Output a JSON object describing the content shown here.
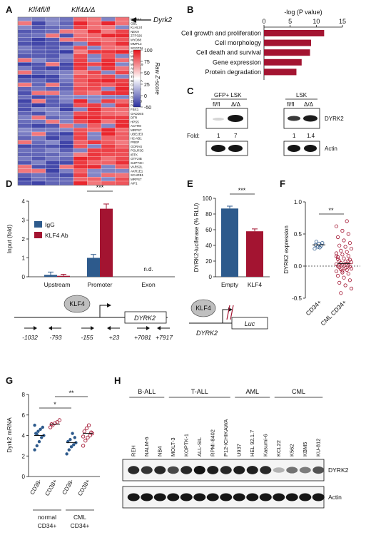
{
  "panel_letters": [
    "A",
    "B",
    "C",
    "D",
    "E",
    "F",
    "G",
    "H"
  ],
  "panelA": {
    "col_headers": [
      "Klf4fl/fl",
      "Klf4Δ/Δ"
    ],
    "highlight_gene": "Dyrk2",
    "genes": [
      "DYRK2",
      "GBL",
      "KLHL24",
      "NEK9",
      "ZFP326",
      "MYD88",
      "MMP13",
      "SCOTIN",
      "EYA3",
      "MX1",
      "RNF4",
      "MRPL19",
      "ABHD5",
      "PFDN4",
      "TIA1",
      "SLC25A",
      "CLIC4",
      "ALKBH",
      "TPK1",
      "GPR30",
      "ZFP553",
      "PIK44",
      "FBX1",
      "GADD45",
      "DTR",
      "HPS5",
      "ACTR8",
      "MRPS7",
      "UBE2E3",
      "H2-AB1",
      "PREP",
      "GORAS",
      "POLR3G",
      "IBTK",
      "GTF2IB",
      "SUPT3H",
      "VARS2L",
      "AKR1E1",
      "SCARB1",
      "MRPS7",
      "AIF1"
    ],
    "colorbar_label": "Raw Z-score",
    "colorbar_ticks": [
      "100",
      "75",
      "50",
      "25",
      "0",
      "-50"
    ],
    "colors": {
      "high": "#e8141c",
      "mid": "#ffffff",
      "low": "#2a2f9e"
    }
  },
  "chart_data": [
    {
      "id": "B",
      "type": "bar",
      "orientation": "horizontal",
      "xlabel": "-log (P value)",
      "xlim": [
        0,
        15
      ],
      "xticks": [
        "0",
        "5",
        "10",
        "15"
      ],
      "categories": [
        "Cell growth and proliferation",
        "Cell morphology",
        "Cell death and survival",
        "Gene expression",
        "Protein degradation"
      ],
      "values": [
        11.5,
        9,
        8.8,
        7.2,
        6.2
      ],
      "color": "#a31431"
    },
    {
      "id": "D",
      "type": "bar",
      "ylabel": "Input (fold)",
      "ylim": [
        0,
        4
      ],
      "yticks": [
        "0",
        "1",
        "2",
        "3",
        "4"
      ],
      "categories": [
        "Upstream",
        "Promoter",
        "Exon"
      ],
      "series": [
        {
          "name": "IgG",
          "values": [
            0.1,
            1.0,
            0
          ],
          "errors": [
            0.15,
            0.18,
            0
          ],
          "color": "#2d5a8c"
        },
        {
          "name": "KLF4 Ab",
          "values": [
            0.05,
            3.6,
            0
          ],
          "errors": [
            0.08,
            0.25,
            0
          ],
          "color": "#a31431"
        }
      ],
      "annotations": [
        "***",
        "n.d."
      ]
    },
    {
      "id": "E",
      "type": "bar",
      "ylabel": "DYRK2-luciferase (% RLU)",
      "ylim": [
        0,
        100
      ],
      "yticks": [
        "0",
        "20",
        "40",
        "60",
        "80",
        "100"
      ],
      "categories": [
        "Empty",
        "KLF4"
      ],
      "values": [
        87,
        58
      ],
      "errors": [
        3,
        3
      ],
      "colors": [
        "#2d5a8c",
        "#a31431"
      ],
      "annotations": [
        "***"
      ]
    },
    {
      "id": "F",
      "type": "scatter",
      "ylabel": "DYRK2 expression",
      "ylim": [
        -0.5,
        1.0
      ],
      "yticks": [
        "-0.5",
        "0.0",
        "0.5",
        "1.0"
      ],
      "categories": [
        "CD34+",
        "CML CD34+"
      ],
      "group_means": [
        0.33,
        0.04
      ],
      "points": [
        [
          0.27,
          0.3,
          0.32,
          0.33,
          0.35,
          0.36,
          0.38,
          0.29
        ],
        [
          0.62,
          0.55,
          0.5,
          0.45,
          0.4,
          0.36,
          0.32,
          0.3,
          0.27,
          0.24,
          0.22,
          0.2,
          0.18,
          0.16,
          0.14,
          0.12,
          0.1,
          0.08,
          0.07,
          0.06,
          0.05,
          0.04,
          0.03,
          0.02,
          0.01,
          0.0,
          0.0,
          -0.01,
          -0.02,
          -0.03,
          -0.04,
          -0.05,
          -0.06,
          -0.08,
          -0.1,
          -0.12,
          -0.15,
          -0.18,
          -0.22,
          -0.26,
          -0.3,
          -0.35,
          -0.42,
          0.7,
          0.15,
          -0.07,
          0.08,
          0.11
        ]
      ],
      "colors": [
        "#2d5a8c",
        "#a31431"
      ],
      "annotations": [
        "**"
      ]
    },
    {
      "id": "G",
      "type": "scatter",
      "ylabel": "Dyrk2 mRNA",
      "ylim": [
        0,
        8
      ],
      "yticks": [
        "0",
        "2",
        "4",
        "6",
        "8"
      ],
      "categories": [
        "CD38-",
        "CD38+",
        "CD38-",
        "CD38+"
      ],
      "group_labels": [
        "normal CD34+",
        "CML CD34+"
      ],
      "group_means": [
        4.0,
        5.1,
        3.3,
        4.2
      ],
      "points": [
        [
          2.6,
          3.0,
          3.4,
          3.8,
          4.0,
          4.2,
          4.4,
          4.6,
          4.8,
          5.0,
          4.1
        ],
        [
          4.8,
          5.0,
          5.2,
          5.3,
          5.5,
          5.1
        ],
        [
          2.2,
          2.6,
          2.9,
          3.1,
          3.3,
          3.4,
          3.6,
          4.2,
          3.8
        ],
        [
          3.0,
          3.5,
          3.8,
          4.0,
          4.2,
          4.4,
          4.7,
          5.0,
          4.3,
          3.9
        ]
      ],
      "colors": [
        "#2d5a8c",
        "#a31431",
        "#2d5a8c",
        "#a31431"
      ],
      "annotations": [
        "*",
        "**"
      ]
    }
  ],
  "panelC": {
    "left_header": "GFP+ LSK",
    "right_header": "LSK",
    "lane_labels": [
      "fl/fl",
      "Δ/Δ"
    ],
    "fold_label": "Fold:",
    "left_fold": [
      "1",
      "7"
    ],
    "right_fold": [
      "1",
      "1.4"
    ],
    "row_labels": [
      "DYRK2",
      "Actin"
    ]
  },
  "panelD_schematic": {
    "factor": "KLF4",
    "gene": "DYRK2",
    "positions": [
      "-1032",
      "-793",
      "-155",
      "+23",
      "+7081",
      "+7917"
    ]
  },
  "panelE_schematic": {
    "factor": "KLF4",
    "gene": "DYRK2",
    "reporter": "Luc"
  },
  "panelH": {
    "groups": [
      "B-ALL",
      "T-ALL",
      "AML",
      "CML"
    ],
    "lanes": [
      "REH",
      "NALM-6",
      "NB4",
      "MOLT-3",
      "KOPTK-1",
      "ALL-SIL",
      "RPMI-8402",
      "P12-ICHIKAWA",
      "U937",
      "HEL 92.1.7",
      "Kasumi-6",
      "KCL22",
      "K562",
      "KBM5",
      "KU-812"
    ],
    "row_labels": [
      "DYRK2",
      "Actin"
    ]
  }
}
